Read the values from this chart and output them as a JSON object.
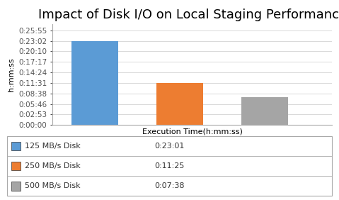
{
  "title": "Impact of Disk I/O on Local Staging Performance",
  "bars": [
    {
      "label": "125 MB/s Disk",
      "value_seconds": 1381,
      "display": "0:23:01",
      "color": "#5B9BD5"
    },
    {
      "label": "250 MB/s Disk",
      "value_seconds": 685,
      "display": "0:11:25",
      "color": "#ED7D31"
    },
    {
      "label": "500 MB/s Disk",
      "value_seconds": 458,
      "display": "0:07:38",
      "color": "#A5A5A5"
    }
  ],
  "xlabel": "Execution Time(h:mm:ss)",
  "ylabel": "h:mm:ss",
  "yticks_seconds": [
    0,
    173,
    346,
    519,
    692,
    865,
    1038,
    1211,
    1382,
    1555
  ],
  "ytick_labels": [
    "0:00:00",
    "0:02:53",
    "0:05:46",
    "0:08:38",
    "0:11:31",
    "0:14:24",
    "0:17:17",
    "0:20:10",
    "0:23:02",
    "0:25:55"
  ],
  "ylim_seconds": [
    0,
    1660
  ],
  "grid_color": "#D9D9D9",
  "title_fontsize": 13,
  "axis_fontsize": 8,
  "tick_fontsize": 7.5,
  "border_color": "#AAAAAA"
}
